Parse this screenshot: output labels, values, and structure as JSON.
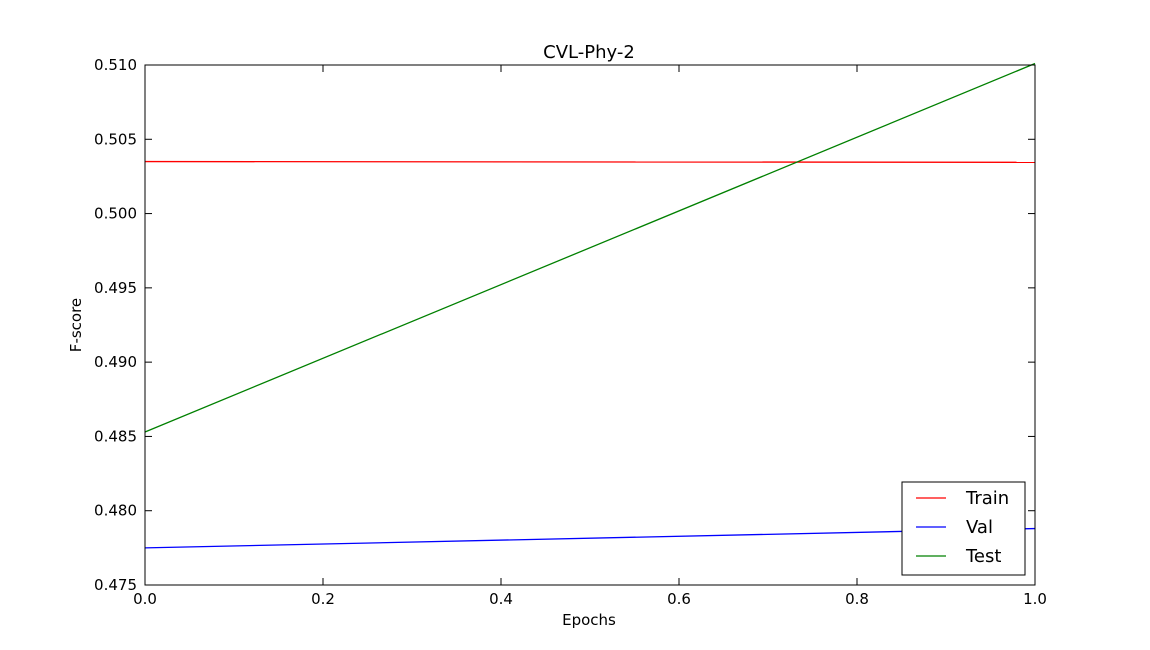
{
  "chart_data": {
    "type": "line",
    "title": "CVL-Phy-2",
    "xlabel": "Epochs",
    "ylabel": "F-score",
    "xlim": [
      0.0,
      1.0
    ],
    "ylim": [
      0.475,
      0.51
    ],
    "xticks": [
      "0.0",
      "0.2",
      "0.4",
      "0.6",
      "0.8",
      "1.0"
    ],
    "yticks": [
      "0.475",
      "0.480",
      "0.485",
      "0.490",
      "0.495",
      "0.500",
      "0.505",
      "0.510"
    ],
    "grid": false,
    "legend_position": "bottom-right",
    "x": [
      0,
      1
    ],
    "series": [
      {
        "name": "Train",
        "color": "#ff0000",
        "values": [
          0.5035,
          0.50345
        ]
      },
      {
        "name": "Val",
        "color": "#0000ff",
        "values": [
          0.4775,
          0.4788
        ]
      },
      {
        "name": "Test",
        "color": "#008000",
        "values": [
          0.4853,
          0.5101
        ]
      }
    ]
  }
}
